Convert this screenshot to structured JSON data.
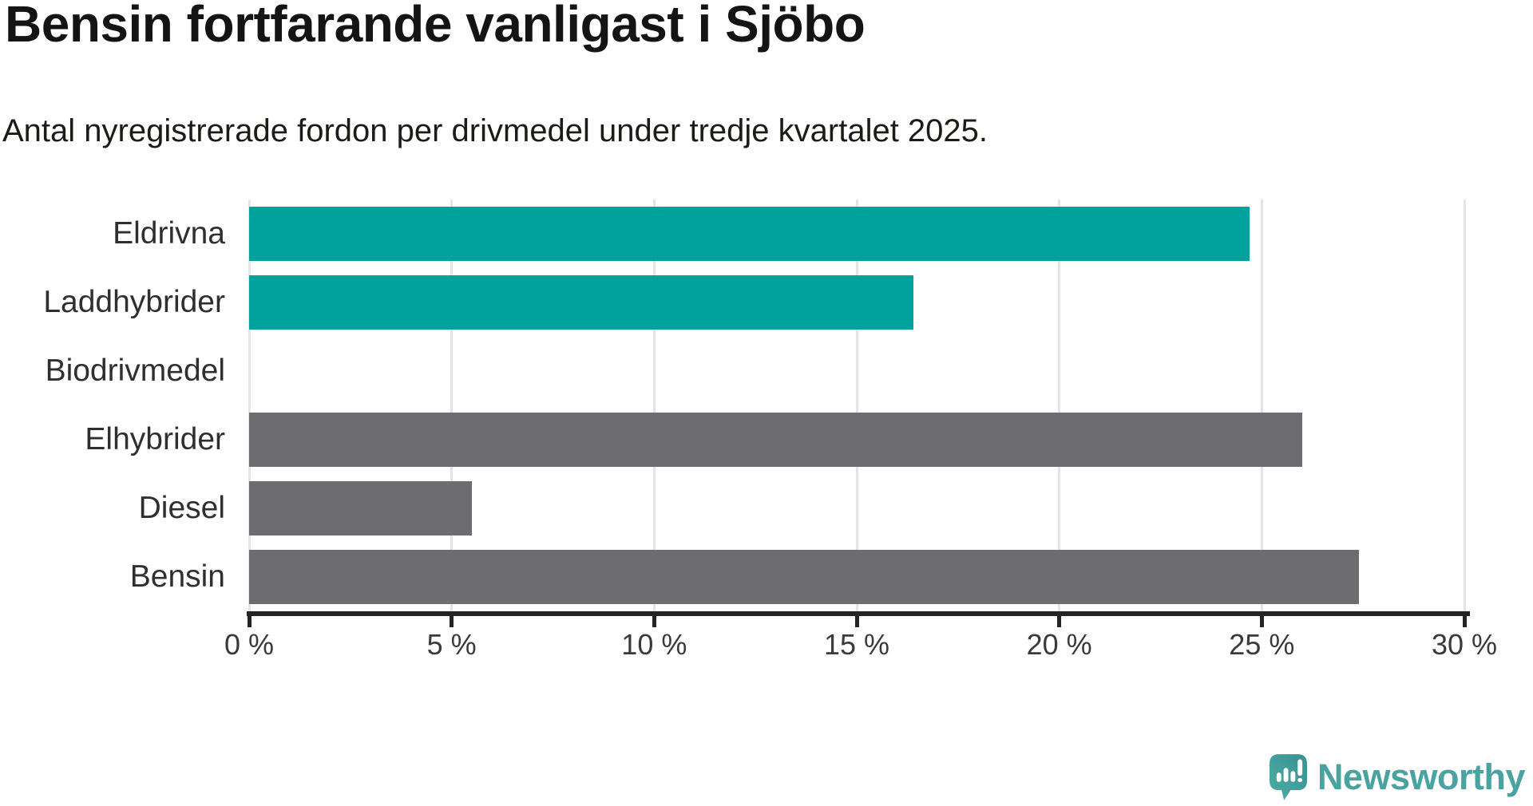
{
  "header": {
    "title": "Bensin fortfarande vanligast i Sjöbo",
    "subtitle": "Antal nyregistrerade fordon per drivmedel under tredje kvartalet 2025."
  },
  "branding": {
    "label": "Newsworthy",
    "icon": "newsworthy-speech-bubble-barchart-icon",
    "color": "#4AA2A1"
  },
  "colors": {
    "highlight_teal": "#00A29B",
    "default_gray": "#6C6C71",
    "gridline": "#E5E5E5",
    "axis": "#242424",
    "title_text": "#141414",
    "label_text": "#2F2F2F"
  },
  "chart_data": {
    "type": "bar",
    "orientation": "horizontal",
    "title": "Bensin fortfarande vanligast i Sjöbo",
    "subtitle": "Antal nyregistrerade fordon per drivmedel under tredje kvartalet 2025.",
    "categories": [
      "Eldrivna",
      "Laddhybrider",
      "Biodrivmedel",
      "Elhybrider",
      "Diesel",
      "Bensin"
    ],
    "values": [
      24.7,
      16.4,
      0,
      26.0,
      5.5,
      27.4
    ],
    "bar_colors": [
      "#00A29B",
      "#00A29B",
      "#6C6C71",
      "#6C6C71",
      "#6C6C71",
      "#6C6C71"
    ],
    "xlabel": "",
    "ylabel": "",
    "xlim": [
      0,
      30
    ],
    "x_ticks": [
      0,
      5,
      10,
      15,
      20,
      25,
      30
    ],
    "x_tick_suffix": " %",
    "grid": true,
    "legend": false
  }
}
